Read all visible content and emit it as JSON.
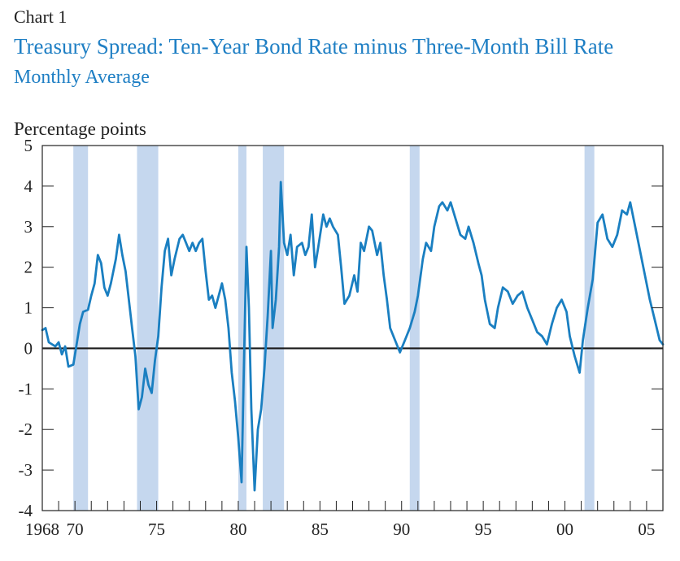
{
  "chart_label": "Chart 1",
  "chart_data": {
    "type": "line",
    "title": "Treasury Spread: Ten-Year Bond Rate minus Three-Month Bill Rate",
    "subtitle": "Monthly Average",
    "ylabel": "Percentage points",
    "xlabel": "",
    "xlim": [
      1968.0,
      2006.0
    ],
    "ylim": [
      -4,
      5
    ],
    "y_ticks": [
      5,
      4,
      3,
      2,
      1,
      0,
      -1,
      -2,
      -3,
      -4
    ],
    "y_tick_labels": [
      "5",
      "4",
      "3",
      "2",
      "1",
      "0",
      "-1",
      "-2",
      "-3",
      "-4"
    ],
    "x_tick_labels": [
      {
        "x": 1968,
        "label": "1968"
      },
      {
        "x": 1970,
        "label": "70"
      },
      {
        "x": 1975,
        "label": "75"
      },
      {
        "x": 1980,
        "label": "80"
      },
      {
        "x": 1985,
        "label": "85"
      },
      {
        "x": 1990,
        "label": "90"
      },
      {
        "x": 1995,
        "label": "95"
      },
      {
        "x": 2000,
        "label": "00"
      },
      {
        "x": 2005,
        "label": "05"
      }
    ],
    "recessions": [
      {
        "start": 1969.9,
        "end": 1970.8
      },
      {
        "start": 1973.8,
        "end": 1975.1
      },
      {
        "start": 1980.0,
        "end": 1980.5
      },
      {
        "start": 1981.5,
        "end": 1982.8
      },
      {
        "start": 1990.5,
        "end": 1991.1
      },
      {
        "start": 2001.2,
        "end": 2001.8
      }
    ],
    "grid": false,
    "zero_line": true,
    "colors": {
      "line": "#1a7fc1",
      "recession": "#c5d7ee",
      "zero_line": "#1a1a1a",
      "axis": "#222222"
    },
    "series": [
      {
        "values": [
          [
            1968.0,
            0.45
          ],
          [
            1968.2,
            0.5
          ],
          [
            1968.4,
            0.15
          ],
          [
            1968.6,
            0.1
          ],
          [
            1968.8,
            0.05
          ],
          [
            1969.0,
            0.15
          ],
          [
            1969.2,
            -0.15
          ],
          [
            1969.4,
            0.05
          ],
          [
            1969.6,
            -0.45
          ],
          [
            1969.9,
            -0.4
          ],
          [
            1970.1,
            0.1
          ],
          [
            1970.3,
            0.6
          ],
          [
            1970.5,
            0.9
          ],
          [
            1970.8,
            0.95
          ],
          [
            1971.0,
            1.3
          ],
          [
            1971.2,
            1.6
          ],
          [
            1971.4,
            2.3
          ],
          [
            1971.6,
            2.1
          ],
          [
            1971.8,
            1.5
          ],
          [
            1972.0,
            1.3
          ],
          [
            1972.2,
            1.6
          ],
          [
            1972.5,
            2.2
          ],
          [
            1972.7,
            2.8
          ],
          [
            1972.9,
            2.3
          ],
          [
            1973.1,
            1.9
          ],
          [
            1973.3,
            1.2
          ],
          [
            1973.5,
            0.5
          ],
          [
            1973.7,
            -0.2
          ],
          [
            1973.9,
            -1.5
          ],
          [
            1974.1,
            -1.2
          ],
          [
            1974.3,
            -0.5
          ],
          [
            1974.5,
            -0.9
          ],
          [
            1974.7,
            -1.1
          ],
          [
            1974.9,
            -0.3
          ],
          [
            1975.1,
            0.3
          ],
          [
            1975.3,
            1.5
          ],
          [
            1975.5,
            2.4
          ],
          [
            1975.7,
            2.7
          ],
          [
            1975.9,
            1.8
          ],
          [
            1976.1,
            2.2
          ],
          [
            1976.4,
            2.7
          ],
          [
            1976.6,
            2.8
          ],
          [
            1976.8,
            2.6
          ],
          [
            1977.0,
            2.4
          ],
          [
            1977.2,
            2.6
          ],
          [
            1977.4,
            2.4
          ],
          [
            1977.6,
            2.6
          ],
          [
            1977.8,
            2.7
          ],
          [
            1978.0,
            1.9
          ],
          [
            1978.2,
            1.2
          ],
          [
            1978.4,
            1.3
          ],
          [
            1978.6,
            1.0
          ],
          [
            1978.8,
            1.3
          ],
          [
            1979.0,
            1.6
          ],
          [
            1979.2,
            1.2
          ],
          [
            1979.4,
            0.5
          ],
          [
            1979.6,
            -0.6
          ],
          [
            1979.8,
            -1.3
          ],
          [
            1980.0,
            -2.2
          ],
          [
            1980.2,
            -3.3
          ],
          [
            1980.35,
            -0.3
          ],
          [
            1980.5,
            2.5
          ],
          [
            1980.65,
            1.0
          ],
          [
            1980.8,
            -1.5
          ],
          [
            1981.0,
            -3.5
          ],
          [
            1981.2,
            -2.0
          ],
          [
            1981.4,
            -1.5
          ],
          [
            1981.6,
            -0.5
          ],
          [
            1981.8,
            0.8
          ],
          [
            1982.0,
            2.4
          ],
          [
            1982.1,
            0.5
          ],
          [
            1982.3,
            1.2
          ],
          [
            1982.5,
            2.5
          ],
          [
            1982.6,
            4.1
          ],
          [
            1982.8,
            2.6
          ],
          [
            1983.0,
            2.3
          ],
          [
            1983.2,
            2.8
          ],
          [
            1983.4,
            1.8
          ],
          [
            1983.6,
            2.5
          ],
          [
            1983.9,
            2.6
          ],
          [
            1984.1,
            2.3
          ],
          [
            1984.3,
            2.5
          ],
          [
            1984.5,
            3.3
          ],
          [
            1984.7,
            2.0
          ],
          [
            1984.9,
            2.5
          ],
          [
            1985.2,
            3.3
          ],
          [
            1985.4,
            3.0
          ],
          [
            1985.6,
            3.2
          ],
          [
            1985.8,
            3.0
          ],
          [
            1986.1,
            2.8
          ],
          [
            1986.3,
            2.0
          ],
          [
            1986.5,
            1.1
          ],
          [
            1986.8,
            1.3
          ],
          [
            1987.1,
            1.8
          ],
          [
            1987.3,
            1.4
          ],
          [
            1987.5,
            2.6
          ],
          [
            1987.7,
            2.4
          ],
          [
            1988.0,
            3.0
          ],
          [
            1988.2,
            2.9
          ],
          [
            1988.5,
            2.3
          ],
          [
            1988.7,
            2.6
          ],
          [
            1988.9,
            1.8
          ],
          [
            1989.1,
            1.2
          ],
          [
            1989.3,
            0.5
          ],
          [
            1989.6,
            0.2
          ],
          [
            1989.9,
            -0.1
          ],
          [
            1990.2,
            0.2
          ],
          [
            1990.5,
            0.5
          ],
          [
            1990.8,
            0.9
          ],
          [
            1991.0,
            1.3
          ],
          [
            1991.3,
            2.2
          ],
          [
            1991.5,
            2.6
          ],
          [
            1991.8,
            2.4
          ],
          [
            1992.0,
            3.0
          ],
          [
            1992.3,
            3.5
          ],
          [
            1992.5,
            3.6
          ],
          [
            1992.8,
            3.4
          ],
          [
            1993.0,
            3.6
          ],
          [
            1993.3,
            3.2
          ],
          [
            1993.6,
            2.8
          ],
          [
            1993.9,
            2.7
          ],
          [
            1994.1,
            3.0
          ],
          [
            1994.4,
            2.6
          ],
          [
            1994.7,
            2.1
          ],
          [
            1994.9,
            1.8
          ],
          [
            1995.1,
            1.2
          ],
          [
            1995.4,
            0.6
          ],
          [
            1995.7,
            0.5
          ],
          [
            1995.9,
            1.0
          ],
          [
            1996.2,
            1.5
          ],
          [
            1996.5,
            1.4
          ],
          [
            1996.8,
            1.1
          ],
          [
            1997.1,
            1.3
          ],
          [
            1997.4,
            1.4
          ],
          [
            1997.7,
            1.0
          ],
          [
            1998.0,
            0.7
          ],
          [
            1998.3,
            0.4
          ],
          [
            1998.6,
            0.3
          ],
          [
            1998.9,
            0.1
          ],
          [
            1999.2,
            0.6
          ],
          [
            1999.5,
            1.0
          ],
          [
            1999.8,
            1.2
          ],
          [
            2000.1,
            0.9
          ],
          [
            2000.3,
            0.3
          ],
          [
            2000.6,
            -0.2
          ],
          [
            2000.9,
            -0.6
          ],
          [
            2001.1,
            0.2
          ],
          [
            2001.4,
            1.0
          ],
          [
            2001.7,
            1.7
          ],
          [
            2002.0,
            3.1
          ],
          [
            2002.3,
            3.3
          ],
          [
            2002.6,
            2.7
          ],
          [
            2002.9,
            2.5
          ],
          [
            2003.2,
            2.8
          ],
          [
            2003.5,
            3.4
          ],
          [
            2003.8,
            3.3
          ],
          [
            2004.0,
            3.6
          ],
          [
            2004.3,
            3.0
          ],
          [
            2004.6,
            2.4
          ],
          [
            2004.9,
            1.8
          ],
          [
            2005.2,
            1.2
          ],
          [
            2005.5,
            0.7
          ],
          [
            2005.8,
            0.2
          ],
          [
            2006.0,
            0.1
          ]
        ]
      }
    ]
  }
}
